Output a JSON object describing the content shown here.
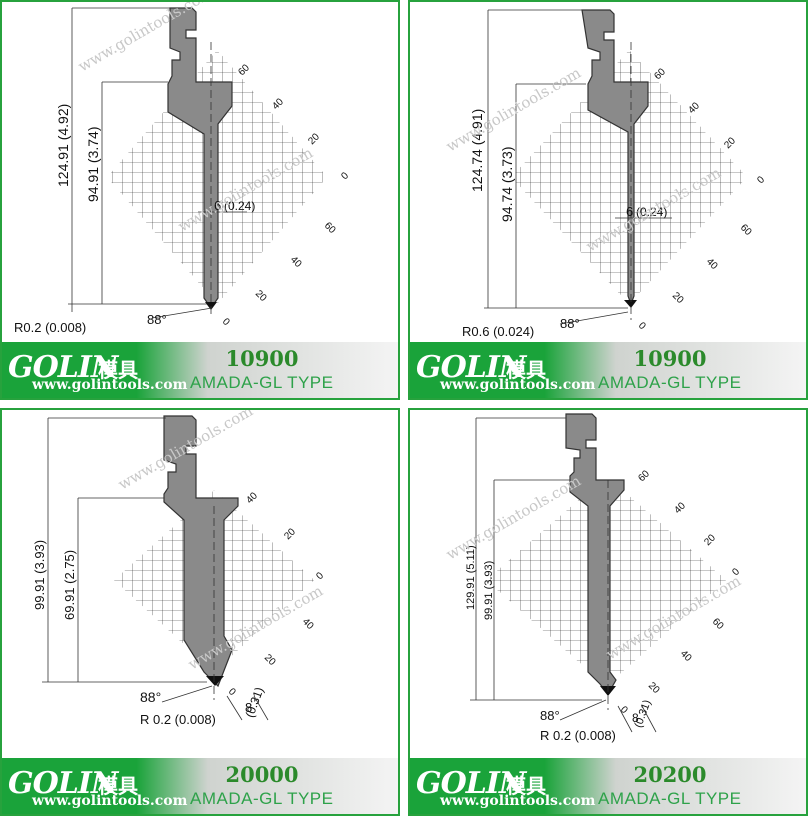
{
  "panels": [
    {
      "brand": "GOLIN",
      "chinese": "模具",
      "url": "www.golintools.com",
      "model": "10900",
      "type": "AMADA-GL  TYPE",
      "dim_total": "124.91 (4.92)",
      "dim_partial": "94.91 (3.74)",
      "radius": "R0.2 (0.008)",
      "angle": "88°",
      "tip_width": "6",
      "tip_width_in": "(0.24)",
      "grid_top": [
        "60",
        "40",
        "20",
        "0"
      ],
      "grid_bottom": [
        "60",
        "40",
        "20",
        "0"
      ],
      "watermark": "www.golintools.com"
    },
    {
      "brand": "GOLIN",
      "chinese": "模具",
      "url": "www.golintools.com",
      "model": "10900",
      "type": "AMADA-GL  TYPE",
      "dim_total": "124.74 (4.91)",
      "dim_partial": "94.74 (3.73)",
      "radius": "R0.6 (0.024)",
      "angle": "88°",
      "tip_width": "6",
      "tip_width_in": "(0.24)",
      "grid_top": [
        "60",
        "40",
        "20",
        "0"
      ],
      "grid_bottom": [
        "60",
        "40",
        "20",
        "0"
      ],
      "watermark": "www.golintools.com"
    },
    {
      "brand": "GOLIN",
      "chinese": "模具",
      "url": "www.golintools.com",
      "model": "20000",
      "type": "AMADA-GL  TYPE",
      "dim_total": "99.91 (3.93)",
      "dim_partial": "69.91 (2.75)",
      "radius": "R 0.2 (0.008)",
      "angle": "88°",
      "tip_width": "8",
      "tip_width_in": "(0.31)",
      "grid_top": [
        "40",
        "20",
        "0"
      ],
      "grid_bottom": [
        "40",
        "20",
        "0"
      ],
      "watermark": "www.golintools.com"
    },
    {
      "brand": "GOLIN",
      "chinese": "模具",
      "url": "www.golintools.com",
      "model": "20200",
      "type": "AMADA-GL  TYPE",
      "dim_total": "129.91 (5.11)",
      "dim_partial": "99.91 (3.93)",
      "radius": "R 0.2 (0.008)",
      "angle": "88°",
      "tip_width": "8",
      "tip_width_in": "(0.31)",
      "grid_top": [
        "60",
        "40",
        "20",
        "0"
      ],
      "grid_bottom": [
        "60",
        "40",
        "20",
        "0"
      ],
      "watermark": "www.golintools.com"
    }
  ],
  "colors": {
    "border": "#27a23d",
    "banner_green": "#1aa33a",
    "model_green": "#2b8a2b",
    "tool_fill": "#8a8a8a"
  }
}
